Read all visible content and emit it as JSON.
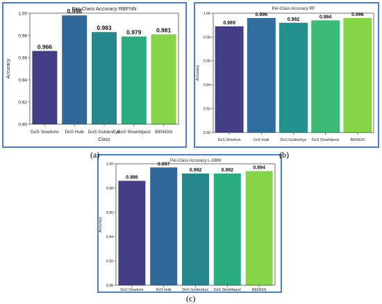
{
  "captions": [
    "(a)",
    "(b)",
    "(c)"
  ],
  "colors": {
    "border": "#4a7fc8",
    "bars": [
      "#433e85",
      "#30689a",
      "#26888e",
      "#2cad7f",
      "#86d549"
    ],
    "bars_rf": [
      "#433e85",
      "#2e6f9f",
      "#23928d",
      "#3bbb75",
      "#86d549"
    ]
  },
  "chart_data": [
    {
      "type": "bar",
      "title": "Per-Class Accuracy RBFNN",
      "xlabel": "Class",
      "ylabel": "Accuracy",
      "categories": [
        "DoS Slowloris",
        "DoS Hulk",
        "DoS GoldenEye",
        "DoS Slowhttpest",
        "BENIGN"
      ],
      "values": [
        0.966,
        0.998,
        0.983,
        0.979,
        0.981
      ],
      "labels": [
        "0.966",
        "0.998",
        "0.983",
        "0.979",
        "0.981"
      ],
      "ylim": [
        0.9,
        1.0
      ],
      "yticks": [
        "0.90",
        "0.92",
        "0.94",
        "0.96",
        "0.98",
        "1.00"
      ],
      "grid": false
    },
    {
      "type": "bar",
      "title": "Per-Class Accuracy RF",
      "xlabel": "",
      "ylabel": "Accuracy",
      "categories": [
        "DoS Slowloris",
        "DoS Hulk",
        "DoS GoldenEye",
        "DoS Slowhttpest",
        "BENIGN"
      ],
      "values": [
        0.989,
        0.996,
        0.992,
        0.994,
        0.996
      ],
      "labels": [
        "0.989",
        "0.996",
        "0.992",
        "0.994",
        "0.996"
      ],
      "ylim": [
        0.9,
        1.0
      ],
      "yticks": [
        "0.90",
        "0.92",
        "0.94",
        "0.96",
        "0.98",
        "1.00"
      ],
      "grid": false
    },
    {
      "type": "bar",
      "title": "Per-Class Accuracy L-GBM",
      "xlabel": "",
      "ylabel": "Accuracy",
      "categories": [
        "DoS Slowloris",
        "DoS Hulk",
        "DoS GoldenEye",
        "DoS Slowhttpest",
        "BENIGN"
      ],
      "values": [
        0.986,
        0.997,
        0.992,
        0.992,
        0.994
      ],
      "labels": [
        "0.986",
        "0.997",
        "0.992",
        "0.992",
        "0.994"
      ],
      "ylim": [
        0.9,
        1.0
      ],
      "yticks": [
        "0.90",
        "0.92",
        "0.94",
        "0.96",
        "0.98",
        "1.00"
      ],
      "grid": false
    }
  ]
}
